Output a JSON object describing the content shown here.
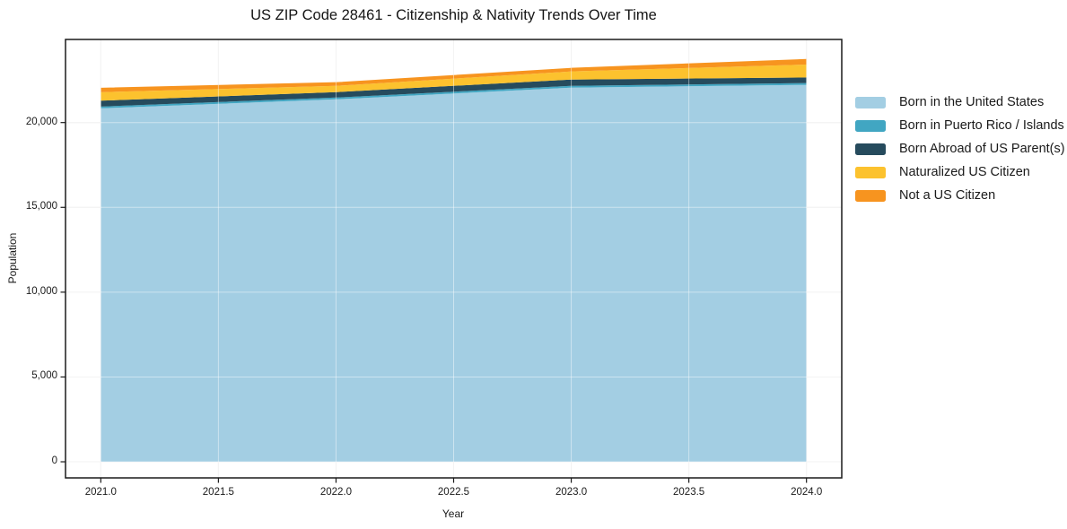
{
  "chart_data": {
    "type": "area",
    "stacked": true,
    "title": "US ZIP Code 28461 - Citizenship & Nativity Trends Over Time",
    "xlabel": "Year",
    "ylabel": "Population",
    "x": [
      2021,
      2022,
      2023,
      2024
    ],
    "series": [
      {
        "name": "Born in the United States",
        "color": "#a3cee3",
        "values": [
          20840,
          21370,
          22060,
          22220
        ]
      },
      {
        "name": "Born in Puerto Rico / Islands",
        "color": "#41a6c2",
        "values": [
          105,
          105,
          105,
          110
        ]
      },
      {
        "name": "Born Abroad of US Parent(s)",
        "color": "#264b5d",
        "values": [
          345,
          320,
          370,
          330
        ]
      },
      {
        "name": "Naturalized US Citizen",
        "color": "#fcc22e",
        "values": [
          500,
          370,
          480,
          760
        ]
      },
      {
        "name": "Not a US Citizen",
        "color": "#f7941f",
        "values": [
          265,
          215,
          210,
          330
        ]
      }
    ],
    "xticks": [
      2021.0,
      2021.5,
      2022.0,
      2022.5,
      2023.0,
      2023.5,
      2024.0
    ],
    "xtick_labels": [
      "2021.0",
      "2021.5",
      "2022.0",
      "2022.5",
      "2023.0",
      "2023.5",
      "2024.0"
    ],
    "yticks": [
      0,
      5000,
      10000,
      15000,
      20000
    ],
    "ytick_labels": [
      "0",
      "5,000",
      "10,000",
      "15,000",
      "20,000"
    ],
    "xlim": [
      2020.85,
      2024.15
    ],
    "ylim": [
      -950,
      24900
    ],
    "grid": true,
    "legend_position": "right-outside",
    "colors": {
      "spine": "#1a1a1a",
      "grid": "#e9e9e9",
      "text": "#1a1a1a",
      "background": "#ffffff"
    }
  }
}
